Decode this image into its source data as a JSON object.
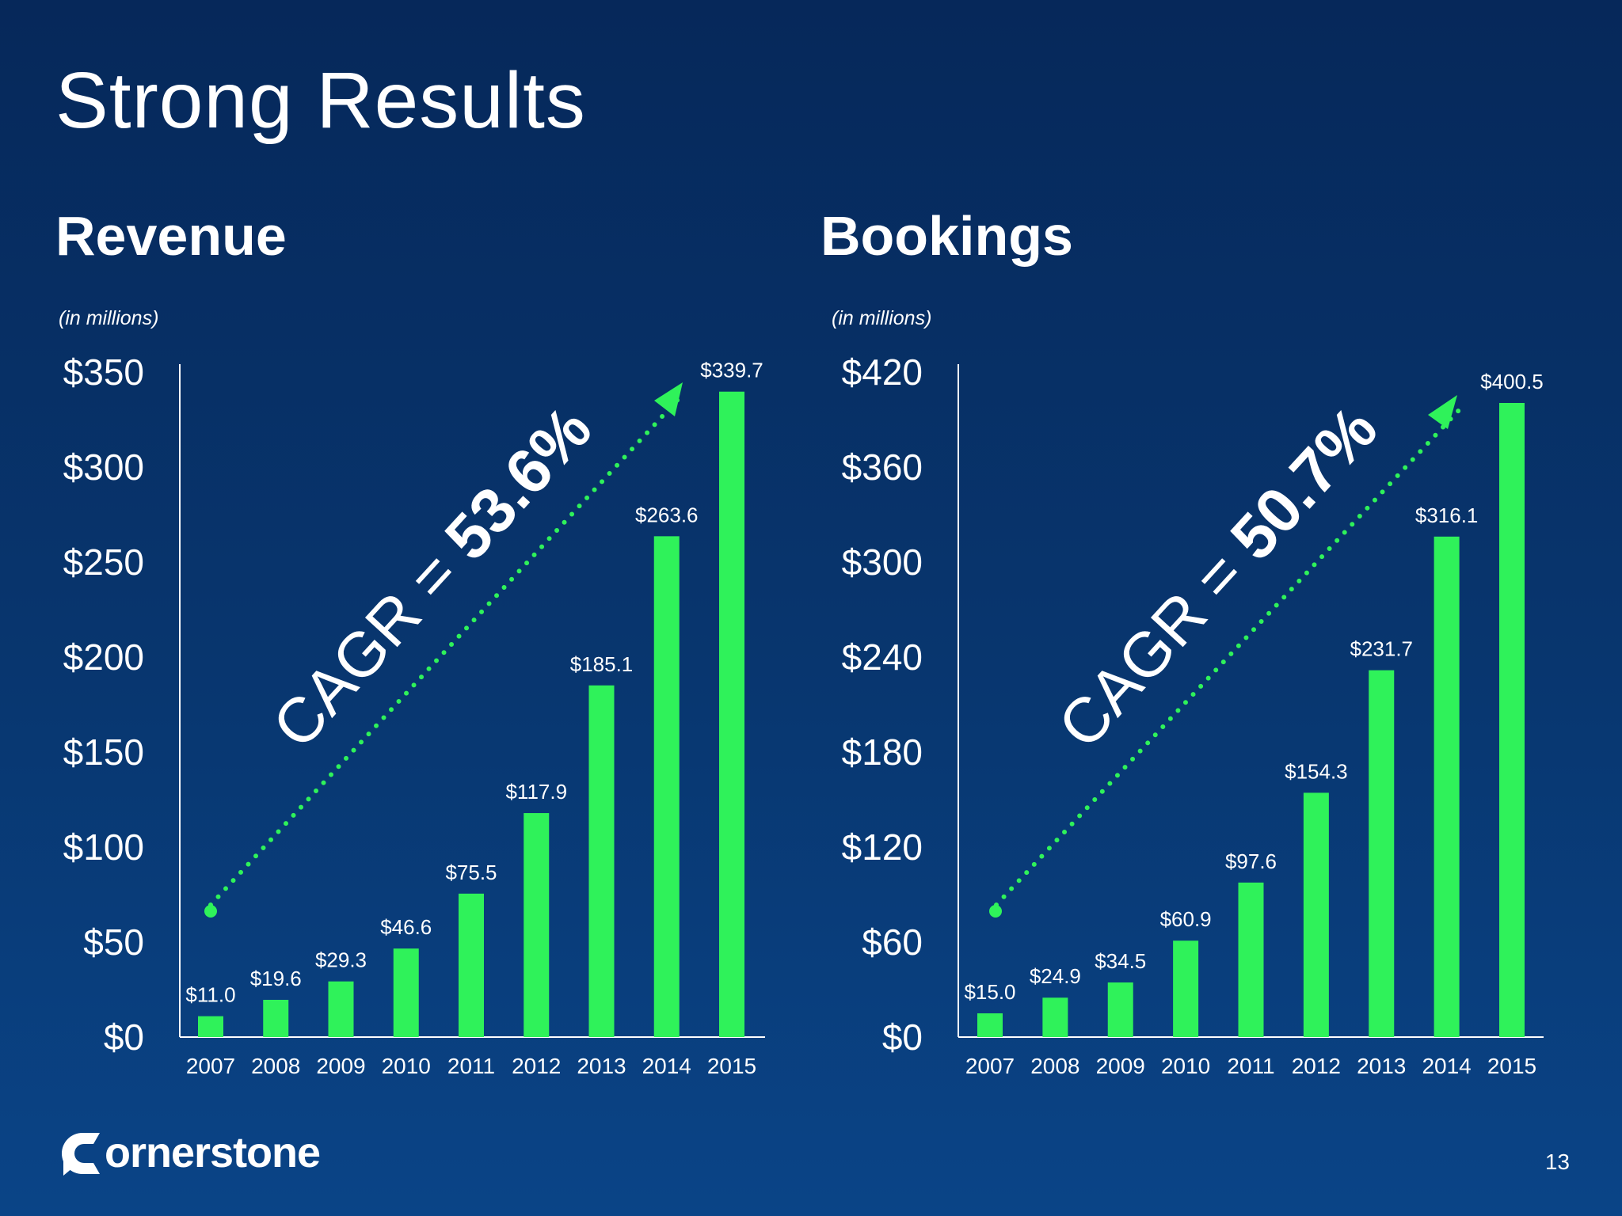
{
  "slide": {
    "title": "Strong Results",
    "page_number": "13",
    "logo_text": "ornerstone",
    "colors": {
      "bar": "#2ff25a",
      "axis": "#ffffff",
      "background": "#08366f"
    }
  },
  "revenue": {
    "title": "Revenue",
    "units": "(in millions)",
    "cagr_prefix": "CAGR = ",
    "cagr_value": "53.6%"
  },
  "bookings": {
    "title": "Bookings",
    "units": "(in millions)",
    "cagr_prefix": "CAGR = ",
    "cagr_value": "50.7%"
  },
  "chart_data": [
    {
      "type": "bar",
      "title": "Revenue",
      "categories": [
        "2007",
        "2008",
        "2009",
        "2010",
        "2011",
        "2012",
        "2013",
        "2014",
        "2015"
      ],
      "values": [
        11.0,
        19.6,
        29.3,
        46.6,
        75.5,
        117.9,
        185.1,
        263.6,
        339.7
      ],
      "data_labels": [
        "$11.0",
        "$19.6",
        "$29.3",
        "$46.6",
        "$75.5",
        "$117.9",
        "$185.1",
        "$263.6",
        "$339.7"
      ],
      "ylim": [
        0,
        350
      ],
      "yticks": [
        0,
        50,
        100,
        150,
        200,
        250,
        300,
        350
      ],
      "ytick_labels": [
        "$0",
        "$50",
        "$100",
        "$150",
        "$200",
        "$250",
        "$300",
        "$350"
      ],
      "annotation": "CAGR = 53.6%",
      "grid": false
    },
    {
      "type": "bar",
      "title": "Bookings",
      "categories": [
        "2007",
        "2008",
        "2009",
        "2010",
        "2011",
        "2012",
        "2013",
        "2014",
        "2015"
      ],
      "values": [
        15.0,
        24.9,
        34.5,
        60.9,
        97.6,
        154.3,
        231.7,
        316.1,
        400.5
      ],
      "data_labels": [
        "$15.0",
        "$24.9",
        "$34.5",
        "$60.9",
        "$97.6",
        "$154.3",
        "$231.7",
        "$316.1",
        "$400.5"
      ],
      "ylim": [
        0,
        420
      ],
      "yticks": [
        0,
        60,
        120,
        180,
        240,
        300,
        360,
        420
      ],
      "ytick_labels": [
        "$0",
        "$60",
        "$120",
        "$180",
        "$240",
        "$300",
        "$360",
        "$420"
      ],
      "annotation": "CAGR = 50.7%",
      "grid": false
    }
  ]
}
